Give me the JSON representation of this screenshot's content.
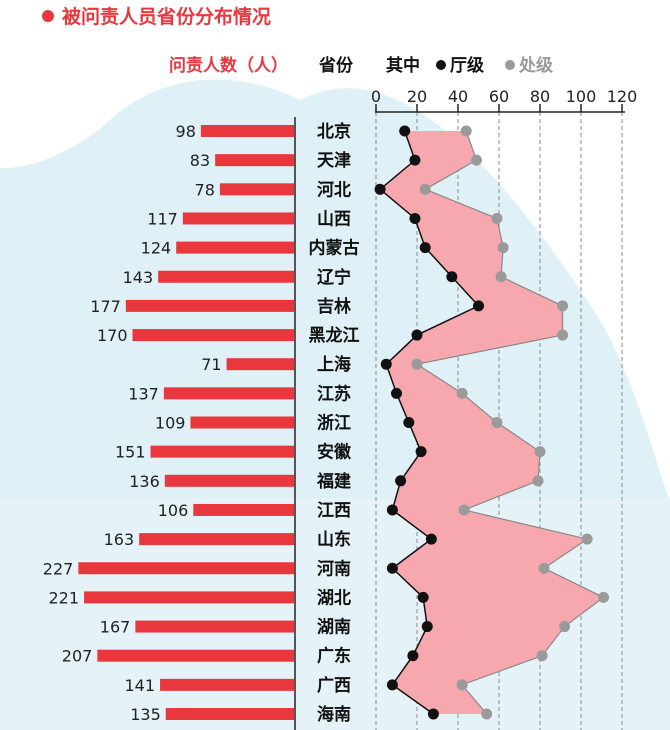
{
  "header": {
    "title": "被问责人员省份分布情况",
    "col_count_label": "问责人数（人）",
    "col_province_label": "省份",
    "col_split_label": "其中",
    "legend_ting": "厅级",
    "legend_chu": "处级"
  },
  "colors": {
    "accent_red": "#e8383d",
    "pink_fill": "#f7a8ae",
    "bg_light_blue": "#dff0f6",
    "dark": "#111111",
    "gray_dot": "#9a9a9a"
  },
  "chart_data": [
    {
      "type": "bar",
      "orientation": "horizontal",
      "categories": [
        "北京",
        "天津",
        "河北",
        "山西",
        "内蒙古",
        "辽宁",
        "吉林",
        "黑龙江",
        "上海",
        "江苏",
        "浙江",
        "安徽",
        "福建",
        "江西",
        "山东",
        "河南",
        "湖北",
        "湖南",
        "广东",
        "广西",
        "海南"
      ],
      "values": [
        98,
        83,
        78,
        117,
        124,
        143,
        177,
        170,
        71,
        137,
        109,
        151,
        136,
        106,
        163,
        227,
        221,
        167,
        207,
        141,
        135
      ],
      "title": "问责人数（人）"
    },
    {
      "type": "line",
      "categories": [
        "北京",
        "天津",
        "河北",
        "山西",
        "内蒙古",
        "辽宁",
        "吉林",
        "黑龙江",
        "上海",
        "江苏",
        "浙江",
        "安徽",
        "福建",
        "江西",
        "山东",
        "河南",
        "湖北",
        "湖南",
        "广东",
        "广西",
        "海南"
      ],
      "series": [
        {
          "name": "厅级",
          "values": [
            14,
            19,
            2,
            19,
            24,
            37,
            50,
            20,
            5,
            10,
            16,
            22,
            12,
            8,
            27,
            8,
            23,
            25,
            18,
            8,
            28
          ]
        },
        {
          "name": "处级",
          "values": [
            44,
            49,
            24,
            59,
            62,
            61,
            91,
            91,
            20,
            42,
            59,
            80,
            79,
            43,
            103,
            82,
            111,
            92,
            81,
            42,
            54
          ]
        }
      ],
      "xlim": [
        0,
        120
      ],
      "xticks": [
        "0",
        "20",
        "40",
        "60",
        "80",
        "100",
        "120"
      ],
      "grid": true
    }
  ]
}
